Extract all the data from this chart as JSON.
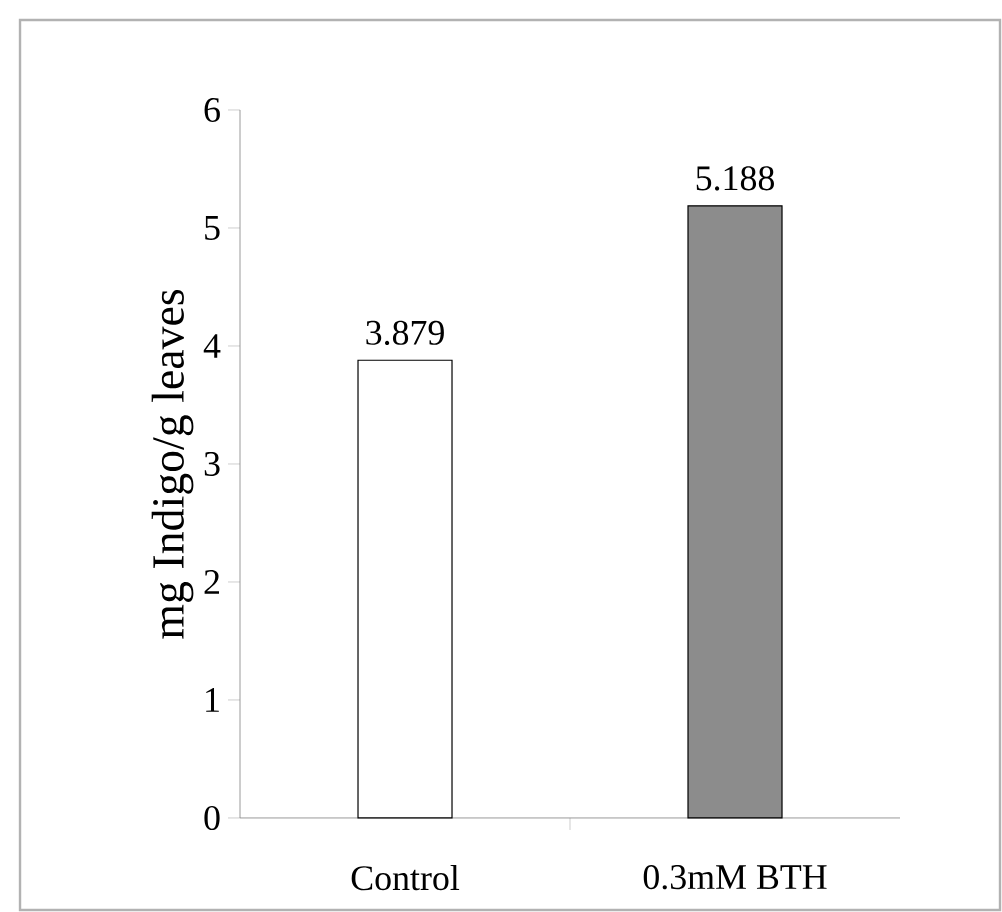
{
  "chart_data": {
    "type": "bar",
    "ylabel": "mg Indigo/g  leaves",
    "categories": [
      "Control",
      "0.3mM BTH"
    ],
    "values": [
      3.879,
      5.188
    ],
    "colors": [
      "#ffffff",
      "#8c8c8c"
    ],
    "ylim": [
      0,
      6
    ],
    "yticks": [
      0,
      1,
      2,
      3,
      4,
      5,
      6
    ],
    "data_labels": true
  }
}
